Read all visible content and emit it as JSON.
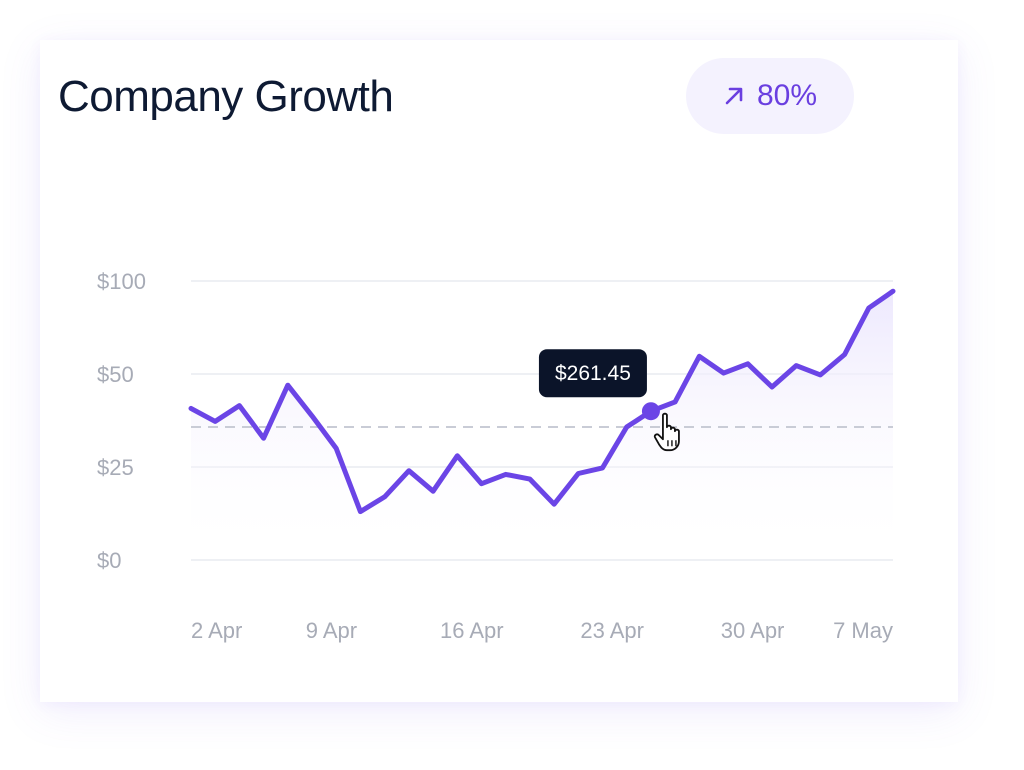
{
  "card": {
    "title": "Company Growth",
    "badge": {
      "icon": "arrow-up-right-icon",
      "value": "80%"
    }
  },
  "tooltip": {
    "label": "$261.45",
    "point_index": 19
  },
  "colors": {
    "line": "#6b45e6",
    "area": "#ece7fd",
    "grid": "#eef0f4",
    "reference": "#c9ccd6",
    "tooltip_bg": "#0b1429",
    "tick": "#a7abb6"
  },
  "chart_data": {
    "type": "area",
    "ytick_labels": [
      "$100",
      "$50",
      "$25",
      "$0"
    ],
    "ylim": [
      0,
      3
    ],
    "xtick_labels": [
      "2 Apr",
      "9 Apr",
      "16 Apr",
      "23 Apr",
      "30 Apr",
      "7 May"
    ],
    "grid": true,
    "reference_line": 1.43,
    "series": [
      {
        "values": [
          1.63,
          1.49,
          1.66,
          1.31,
          1.88,
          1.55,
          1.2,
          0.52,
          0.68,
          0.96,
          0.74,
          1.12,
          0.82,
          0.92,
          0.87,
          0.6,
          0.93,
          0.99,
          1.43,
          1.6,
          1.7,
          2.19,
          2.01,
          2.11,
          1.86,
          2.09,
          1.99,
          2.21,
          2.71,
          2.89
        ]
      }
    ]
  }
}
